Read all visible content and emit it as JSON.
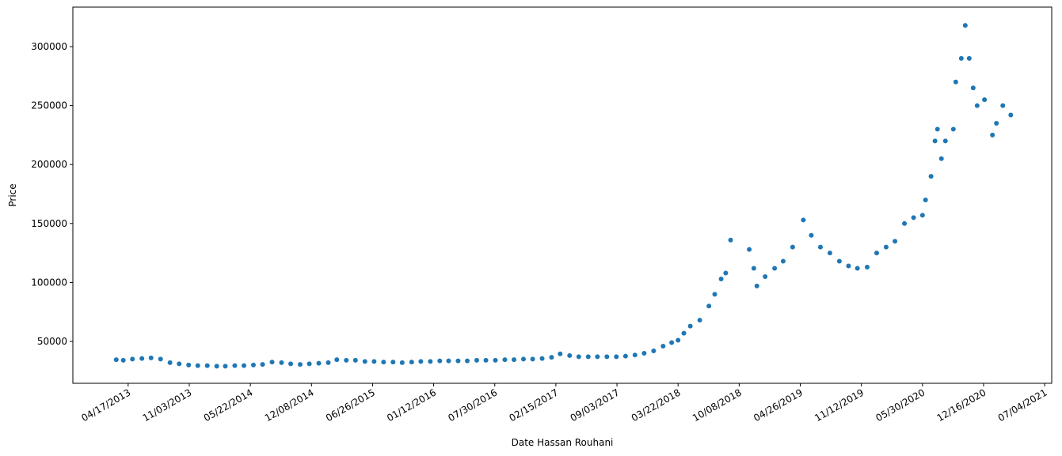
{
  "chart_data": {
    "type": "scatter",
    "xlabel": "Date Hassan Rouhani",
    "ylabel": "Price",
    "color": "#1f77b4",
    "xlim": [
      "10/18/2012",
      "07/27/2021"
    ],
    "ylim": [
      14500,
      333500
    ],
    "xticks": [
      "04/17/2013",
      "11/03/2013",
      "05/22/2014",
      "12/08/2014",
      "06/26/2015",
      "01/12/2016",
      "07/30/2016",
      "02/15/2017",
      "09/03/2017",
      "03/22/2018",
      "10/08/2018",
      "04/26/2019",
      "11/12/2019",
      "05/30/2020",
      "12/16/2020",
      "07/04/2021"
    ],
    "yticks": [
      50000,
      100000,
      150000,
      200000,
      250000,
      300000
    ],
    "x": [
      "03/09/2013",
      "04/01/2013",
      "05/01/2013",
      "06/01/2013",
      "07/01/2013",
      "08/01/2013",
      "09/01/2013",
      "10/01/2013",
      "11/01/2013",
      "12/01/2013",
      "01/01/2014",
      "02/01/2014",
      "03/01/2014",
      "04/01/2014",
      "05/01/2014",
      "06/01/2014",
      "07/01/2014",
      "08/01/2014",
      "09/01/2014",
      "10/01/2014",
      "11/01/2014",
      "12/01/2014",
      "01/01/2015",
      "02/01/2015",
      "03/01/2015",
      "04/01/2015",
      "05/01/2015",
      "06/01/2015",
      "07/01/2015",
      "08/01/2015",
      "09/01/2015",
      "10/01/2015",
      "11/01/2015",
      "12/01/2015",
      "01/01/2016",
      "02/01/2016",
      "03/01/2016",
      "04/01/2016",
      "05/01/2016",
      "06/01/2016",
      "07/01/2016",
      "08/01/2016",
      "09/01/2016",
      "10/01/2016",
      "11/01/2016",
      "12/01/2016",
      "01/01/2017",
      "02/01/2017",
      "03/01/2017",
      "04/01/2017",
      "05/01/2017",
      "06/01/2017",
      "07/01/2017",
      "08/01/2017",
      "09/01/2017",
      "10/01/2017",
      "11/01/2017",
      "12/01/2017",
      "01/01/2018",
      "02/01/2018",
      "03/01/2018",
      "03/22/2018",
      "04/10/2018",
      "05/01/2018",
      "06/01/2018",
      "07/01/2018",
      "07/20/2018",
      "08/10/2018",
      "08/25/2018",
      "09/10/2018",
      "11/10/2018",
      "11/25/2018",
      "12/05/2018",
      "01/01/2019",
      "02/01/2019",
      "03/01/2019",
      "04/01/2019",
      "05/06/2019",
      "06/01/2019",
      "07/01/2019",
      "08/01/2019",
      "09/01/2019",
      "10/01/2019",
      "10/30/2019",
      "12/01/2019",
      "01/01/2020",
      "02/01/2020",
      "03/01/2020",
      "04/01/2020",
      "05/01/2020",
      "05/30/2020",
      "06/09/2020",
      "06/27/2020",
      "07/10/2020",
      "07/18/2020",
      "07/31/2020",
      "08/13/2020",
      "09/08/2020",
      "09/16/2020",
      "10/04/2020",
      "10/17/2020",
      "10/30/2020",
      "11/12/2020",
      "11/25/2020",
      "12/19/2020",
      "01/14/2021",
      "01/27/2021",
      "02/17/2021",
      "03/15/2021"
    ],
    "values": [
      34500,
      34000,
      35000,
      35500,
      36000,
      35000,
      32000,
      31000,
      30000,
      29500,
      29500,
      29000,
      29000,
      29500,
      29500,
      30000,
      30500,
      32500,
      32000,
      31000,
      30500,
      31000,
      31500,
      32000,
      34500,
      34000,
      34000,
      33000,
      33000,
      32500,
      32500,
      32000,
      32500,
      33000,
      33000,
      33500,
      33500,
      33500,
      33500,
      34000,
      34000,
      34000,
      34500,
      34500,
      35000,
      35000,
      35500,
      36500,
      39500,
      38000,
      37000,
      37000,
      37000,
      37000,
      37000,
      37500,
      38500,
      40000,
      42000,
      46000,
      49000,
      51000,
      57000,
      63000,
      68000,
      80000,
      90000,
      103000,
      108000,
      136000,
      128000,
      112000,
      97000,
      105000,
      112000,
      118000,
      130000,
      153000,
      140000,
      130000,
      125000,
      118000,
      114000,
      112000,
      113000,
      125000,
      130000,
      135000,
      150000,
      155000,
      157000,
      170000,
      190000,
      220000,
      230000,
      205000,
      220000,
      230000,
      270000,
      290000,
      318000,
      290000,
      265000,
      250000,
      255000,
      225000,
      235000,
      250000,
      242000
    ]
  }
}
